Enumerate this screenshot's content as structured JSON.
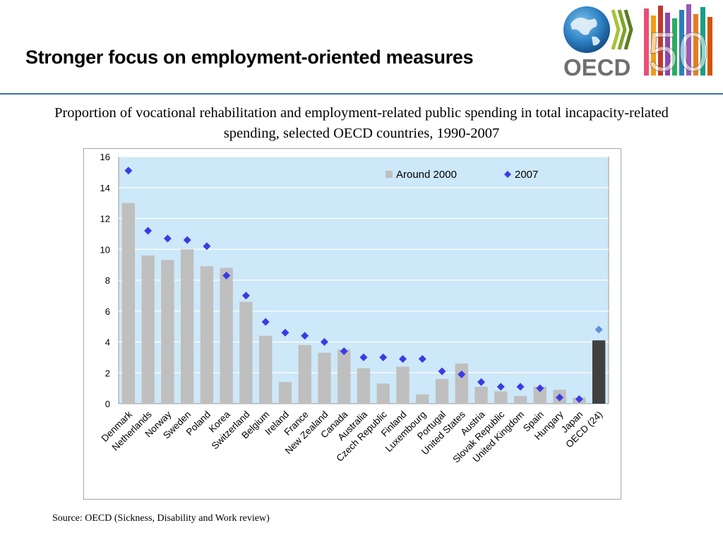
{
  "slide": {
    "title": "Stronger focus on employment-oriented measures",
    "logo_text": "OECD",
    "logo_anniversary": "50",
    "source": "Source: OECD (Sickness, Disability and Work review)"
  },
  "colors": {
    "header_rule": "#3d6fa8",
    "plot_bg": "#cde8f8",
    "bar_around_2000": "#bfbfbf",
    "bar_oecd": "#404040",
    "marker_2007": "#3b3be6",
    "marker_oecd": "#5b93d6"
  },
  "chart_data": {
    "type": "bar",
    "title": "Proportion of vocational rehabilitation and employment-related public spending in total incapacity-related spending, selected OECD countries, 1990-2007",
    "xlabel": "",
    "ylabel": "",
    "ylim": [
      0,
      16
    ],
    "yticks": [
      0,
      2,
      4,
      6,
      8,
      10,
      12,
      14,
      16
    ],
    "grid": true,
    "legend_position": "top-right",
    "categories": [
      "Denmark",
      "Netherlands",
      "Norway",
      "Sweden",
      "Poland",
      "Korea",
      "Switzerland",
      "Belgium",
      "Ireland",
      "France",
      "New Zealand",
      "Canada",
      "Australia",
      "Czech Republic",
      "Finland",
      "Luxembourg",
      "Portugal",
      "United States",
      "Austria",
      "Slovak Republic",
      "United Kingdom",
      "Spain",
      "Hungary",
      "Japan",
      "OECD (24)"
    ],
    "series": [
      {
        "name": "Around 2000",
        "kind": "bar",
        "values": [
          13.0,
          9.6,
          9.3,
          10.0,
          8.9,
          8.8,
          6.6,
          4.4,
          1.4,
          3.8,
          3.3,
          3.5,
          2.3,
          1.3,
          2.4,
          0.6,
          1.6,
          2.6,
          1.1,
          0.8,
          0.5,
          1.1,
          0.9,
          0.4,
          4.1
        ]
      },
      {
        "name": "2007",
        "kind": "marker",
        "values": [
          15.1,
          11.2,
          10.7,
          10.6,
          10.2,
          8.3,
          7.0,
          5.3,
          4.6,
          4.4,
          4.0,
          3.4,
          3.0,
          3.0,
          2.9,
          2.9,
          2.1,
          1.9,
          1.4,
          1.1,
          1.1,
          1.0,
          0.4,
          0.3,
          4.8
        ]
      }
    ]
  }
}
